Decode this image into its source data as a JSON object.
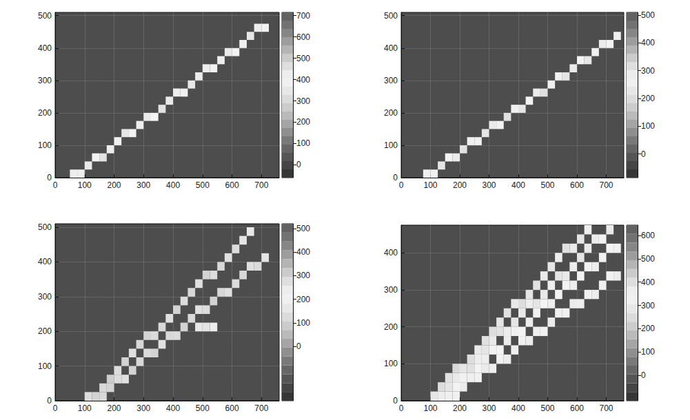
{
  "chart_data": [
    {
      "type": "heatmap",
      "xlim": [
        0,
        760
      ],
      "xticks": [
        0,
        100,
        200,
        300,
        400,
        500,
        600,
        700
      ],
      "ylim": [
        0,
        510
      ],
      "yticks": [
        0,
        100,
        200,
        300,
        400,
        500
      ],
      "grid": true,
      "bin_width": 25,
      "bin_height": 25,
      "cells": [
        [
          50,
          0,
          380
        ],
        [
          75,
          0,
          420
        ],
        [
          100,
          25,
          430
        ],
        [
          125,
          50,
          400
        ],
        [
          150,
          50,
          450
        ],
        [
          175,
          75,
          420
        ],
        [
          200,
          100,
          390
        ],
        [
          225,
          125,
          440
        ],
        [
          250,
          125,
          410
        ],
        [
          275,
          150,
          380
        ],
        [
          300,
          175,
          430
        ],
        [
          325,
          175,
          400
        ],
        [
          350,
          200,
          450
        ],
        [
          375,
          225,
          360
        ],
        [
          400,
          250,
          420
        ],
        [
          425,
          250,
          390
        ],
        [
          450,
          275,
          440
        ],
        [
          475,
          300,
          370
        ],
        [
          500,
          325,
          420
        ],
        [
          525,
          325,
          400
        ],
        [
          550,
          350,
          380
        ],
        [
          575,
          375,
          430
        ],
        [
          600,
          375,
          410
        ],
        [
          625,
          400,
          390
        ],
        [
          650,
          425,
          440
        ],
        [
          675,
          450,
          420
        ],
        [
          700,
          450,
          400
        ]
      ],
      "colorbar_range": [
        -60,
        715
      ],
      "colorbar_ticks": [
        0,
        100,
        200,
        300,
        400,
        500,
        600,
        700
      ]
    },
    {
      "type": "heatmap",
      "xlim": [
        0,
        760
      ],
      "xticks": [
        0,
        100,
        200,
        300,
        400,
        500,
        600,
        700
      ],
      "ylim": [
        0,
        510
      ],
      "yticks": [
        0,
        100,
        200,
        300,
        400,
        500
      ],
      "grid": true,
      "bin_width": 25,
      "bin_height": 25,
      "cells": [
        [
          75,
          0,
          260
        ],
        [
          100,
          0,
          280
        ],
        [
          125,
          25,
          300
        ],
        [
          150,
          50,
          270
        ],
        [
          175,
          50,
          290
        ],
        [
          200,
          75,
          310
        ],
        [
          225,
          100,
          280
        ],
        [
          250,
          100,
          260
        ],
        [
          275,
          125,
          300
        ],
        [
          300,
          150,
          290
        ],
        [
          325,
          150,
          270
        ],
        [
          350,
          175,
          310
        ],
        [
          375,
          200,
          280
        ],
        [
          400,
          200,
          300
        ],
        [
          425,
          225,
          270
        ],
        [
          450,
          250,
          290
        ],
        [
          475,
          250,
          310
        ],
        [
          500,
          275,
          280
        ],
        [
          525,
          300,
          260
        ],
        [
          550,
          300,
          300
        ],
        [
          575,
          325,
          290
        ],
        [
          600,
          350,
          270
        ],
        [
          625,
          350,
          300
        ],
        [
          650,
          375,
          280
        ],
        [
          675,
          400,
          290
        ],
        [
          700,
          400,
          270
        ],
        [
          725,
          425,
          260
        ]
      ],
      "colorbar_range": [
        -85,
        510
      ],
      "colorbar_ticks": [
        0,
        100,
        200,
        300,
        400,
        500
      ]
    },
    {
      "type": "heatmap",
      "xlim": [
        0,
        760
      ],
      "xticks": [
        0,
        100,
        200,
        300,
        400,
        500,
        600,
        700
      ],
      "ylim": [
        0,
        510
      ],
      "yticks": [
        0,
        100,
        200,
        300,
        400,
        500
      ],
      "grid": true,
      "bin_width": 25,
      "bin_height": 25,
      "cells": [
        [
          100,
          0,
          280
        ],
        [
          125,
          0,
          300
        ],
        [
          150,
          25,
          290
        ],
        [
          175,
          50,
          310
        ],
        [
          200,
          75,
          280
        ],
        [
          225,
          100,
          300
        ],
        [
          250,
          125,
          270
        ],
        [
          275,
          150,
          290
        ],
        [
          300,
          175,
          300
        ],
        [
          325,
          175,
          280
        ],
        [
          350,
          200,
          290
        ],
        [
          375,
          225,
          270
        ],
        [
          400,
          250,
          300
        ],
        [
          425,
          275,
          280
        ],
        [
          450,
          300,
          290
        ],
        [
          475,
          325,
          270
        ],
        [
          500,
          350,
          300
        ],
        [
          525,
          350,
          280
        ],
        [
          550,
          375,
          290
        ],
        [
          575,
          400,
          270
        ],
        [
          600,
          425,
          280
        ],
        [
          625,
          450,
          260
        ],
        [
          650,
          475,
          250
        ],
        [
          150,
          0,
          290
        ],
        [
          175,
          25,
          300
        ],
        [
          200,
          50,
          280
        ],
        [
          225,
          50,
          270
        ],
        [
          250,
          75,
          300
        ],
        [
          275,
          100,
          290
        ],
        [
          300,
          125,
          280
        ],
        [
          325,
          125,
          300
        ],
        [
          350,
          150,
          270
        ],
        [
          375,
          175,
          290
        ],
        [
          400,
          175,
          280
        ],
        [
          425,
          200,
          300
        ],
        [
          450,
          225,
          290
        ],
        [
          475,
          250,
          270
        ],
        [
          500,
          250,
          280
        ],
        [
          525,
          275,
          300
        ],
        [
          550,
          300,
          290
        ],
        [
          575,
          300,
          270
        ],
        [
          600,
          325,
          280
        ],
        [
          625,
          350,
          290
        ],
        [
          650,
          375,
          270
        ],
        [
          675,
          375,
          280
        ],
        [
          700,
          400,
          260
        ],
        [
          475,
          200,
          250
        ],
        [
          500,
          200,
          260
        ],
        [
          525,
          200,
          240
        ]
      ],
      "colorbar_range": [
        -230,
        520
      ],
      "colorbar_ticks": [
        0,
        100,
        200,
        300,
        400,
        500
      ]
    },
    {
      "type": "heatmap",
      "xlim": [
        0,
        760
      ],
      "xticks": [
        0,
        100,
        200,
        300,
        400,
        500,
        600,
        700
      ],
      "ylim": [
        0,
        475
      ],
      "yticks": [
        0,
        100,
        200,
        300,
        400
      ],
      "grid": true,
      "bin_width": 25,
      "bin_height": 25,
      "cells": [
        [
          100,
          0,
          380
        ],
        [
          125,
          25,
          400
        ],
        [
          150,
          50,
          390
        ],
        [
          175,
          75,
          410
        ],
        [
          200,
          75,
          380
        ],
        [
          225,
          100,
          400
        ],
        [
          250,
          125,
          370
        ],
        [
          275,
          150,
          390
        ],
        [
          300,
          175,
          400
        ],
        [
          325,
          200,
          380
        ],
        [
          350,
          225,
          390
        ],
        [
          375,
          250,
          370
        ],
        [
          400,
          250,
          400
        ],
        [
          425,
          275,
          380
        ],
        [
          450,
          300,
          390
        ],
        [
          475,
          325,
          370
        ],
        [
          500,
          350,
          380
        ],
        [
          525,
          375,
          360
        ],
        [
          550,
          400,
          390
        ],
        [
          575,
          400,
          370
        ],
        [
          600,
          425,
          380
        ],
        [
          625,
          450,
          360
        ],
        [
          125,
          0,
          360
        ],
        [
          150,
          25,
          380
        ],
        [
          175,
          50,
          370
        ],
        [
          225,
          75,
          390
        ],
        [
          250,
          100,
          360
        ],
        [
          275,
          125,
          380
        ],
        [
          300,
          150,
          370
        ],
        [
          325,
          175,
          390
        ],
        [
          350,
          175,
          360
        ],
        [
          375,
          200,
          380
        ],
        [
          400,
          225,
          370
        ],
        [
          425,
          250,
          360
        ],
        [
          450,
          250,
          380
        ],
        [
          475,
          275,
          370
        ],
        [
          500,
          300,
          360
        ],
        [
          525,
          325,
          380
        ],
        [
          550,
          325,
          370
        ],
        [
          575,
          350,
          360
        ],
        [
          600,
          375,
          380
        ],
        [
          625,
          400,
          370
        ],
        [
          650,
          425,
          360
        ],
        [
          675,
          425,
          350
        ],
        [
          700,
          450,
          370
        ],
        [
          175,
          25,
          340
        ],
        [
          200,
          50,
          350
        ],
        [
          250,
          75,
          340
        ],
        [
          275,
          100,
          360
        ],
        [
          300,
          125,
          350
        ],
        [
          325,
          125,
          340
        ],
        [
          350,
          150,
          360
        ],
        [
          375,
          175,
          350
        ],
        [
          400,
          175,
          340
        ],
        [
          425,
          200,
          360
        ],
        [
          450,
          225,
          350
        ],
        [
          475,
          250,
          340
        ],
        [
          500,
          250,
          360
        ],
        [
          525,
          275,
          350
        ],
        [
          550,
          300,
          340
        ],
        [
          575,
          300,
          360
        ],
        [
          600,
          325,
          350
        ],
        [
          625,
          350,
          340
        ],
        [
          650,
          350,
          360
        ],
        [
          675,
          375,
          350
        ],
        [
          700,
          400,
          340
        ],
        [
          725,
          400,
          330
        ],
        [
          150,
          0,
          320
        ],
        [
          175,
          0,
          330
        ],
        [
          200,
          25,
          310
        ],
        [
          225,
          50,
          320
        ],
        [
          250,
          50,
          330
        ],
        [
          275,
          75,
          310
        ],
        [
          300,
          75,
          320
        ],
        [
          325,
          100,
          330
        ],
        [
          350,
          100,
          310
        ],
        [
          375,
          125,
          320
        ],
        [
          400,
          150,
          330
        ],
        [
          425,
          150,
          310
        ],
        [
          450,
          175,
          320
        ],
        [
          475,
          175,
          330
        ],
        [
          500,
          200,
          310
        ],
        [
          525,
          225,
          320
        ],
        [
          550,
          225,
          330
        ],
        [
          575,
          250,
          310
        ],
        [
          600,
          250,
          320
        ],
        [
          625,
          275,
          330
        ],
        [
          650,
          275,
          310
        ],
        [
          675,
          300,
          320
        ],
        [
          700,
          325,
          330
        ],
        [
          725,
          325,
          310
        ]
      ],
      "colorbar_range": [
        -110,
        645
      ],
      "colorbar_ticks": [
        0,
        100,
        200,
        300,
        400,
        500,
        600
      ]
    }
  ]
}
